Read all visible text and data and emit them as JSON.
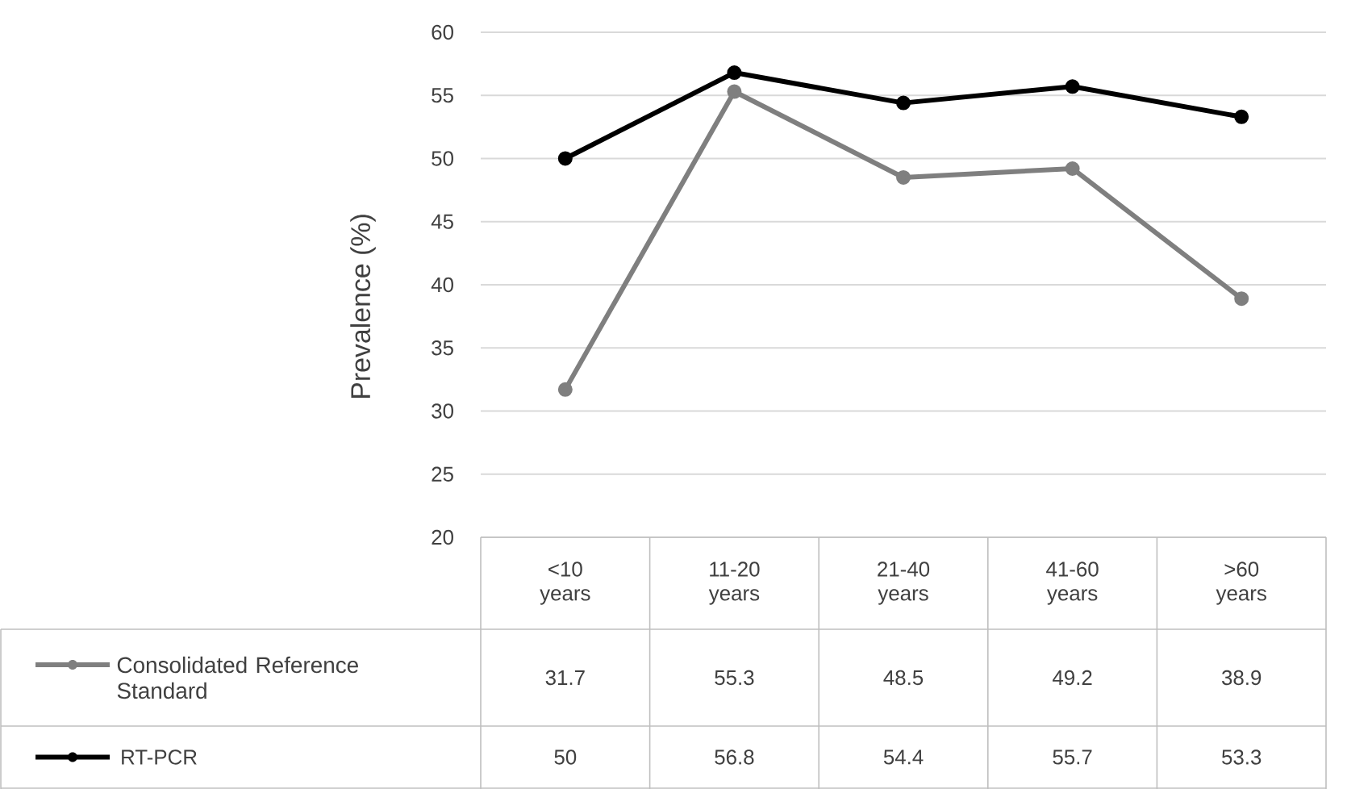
{
  "chart_data": {
    "type": "line",
    "ylabel": "Prevalence (%)",
    "categories": [
      "<10 years",
      "11-20 years",
      "21-40 years",
      "41-60 years",
      ">60 years"
    ],
    "series": [
      {
        "name": "Consolidated Reference Standard",
        "color": "#7f7f7f",
        "values": [
          31.7,
          55.3,
          48.5,
          49.2,
          38.9
        ]
      },
      {
        "name": "RT-PCR",
        "color": "#000000",
        "values": [
          50,
          56.8,
          54.4,
          55.7,
          53.3
        ]
      }
    ],
    "ylim": [
      20,
      60
    ],
    "yticks": [
      20,
      25,
      30,
      35,
      40,
      45,
      50,
      55,
      60
    ],
    "grid": "y",
    "legend": "bottom left",
    "marker": "circle",
    "line_style": "solid",
    "data_labels": true
  }
}
